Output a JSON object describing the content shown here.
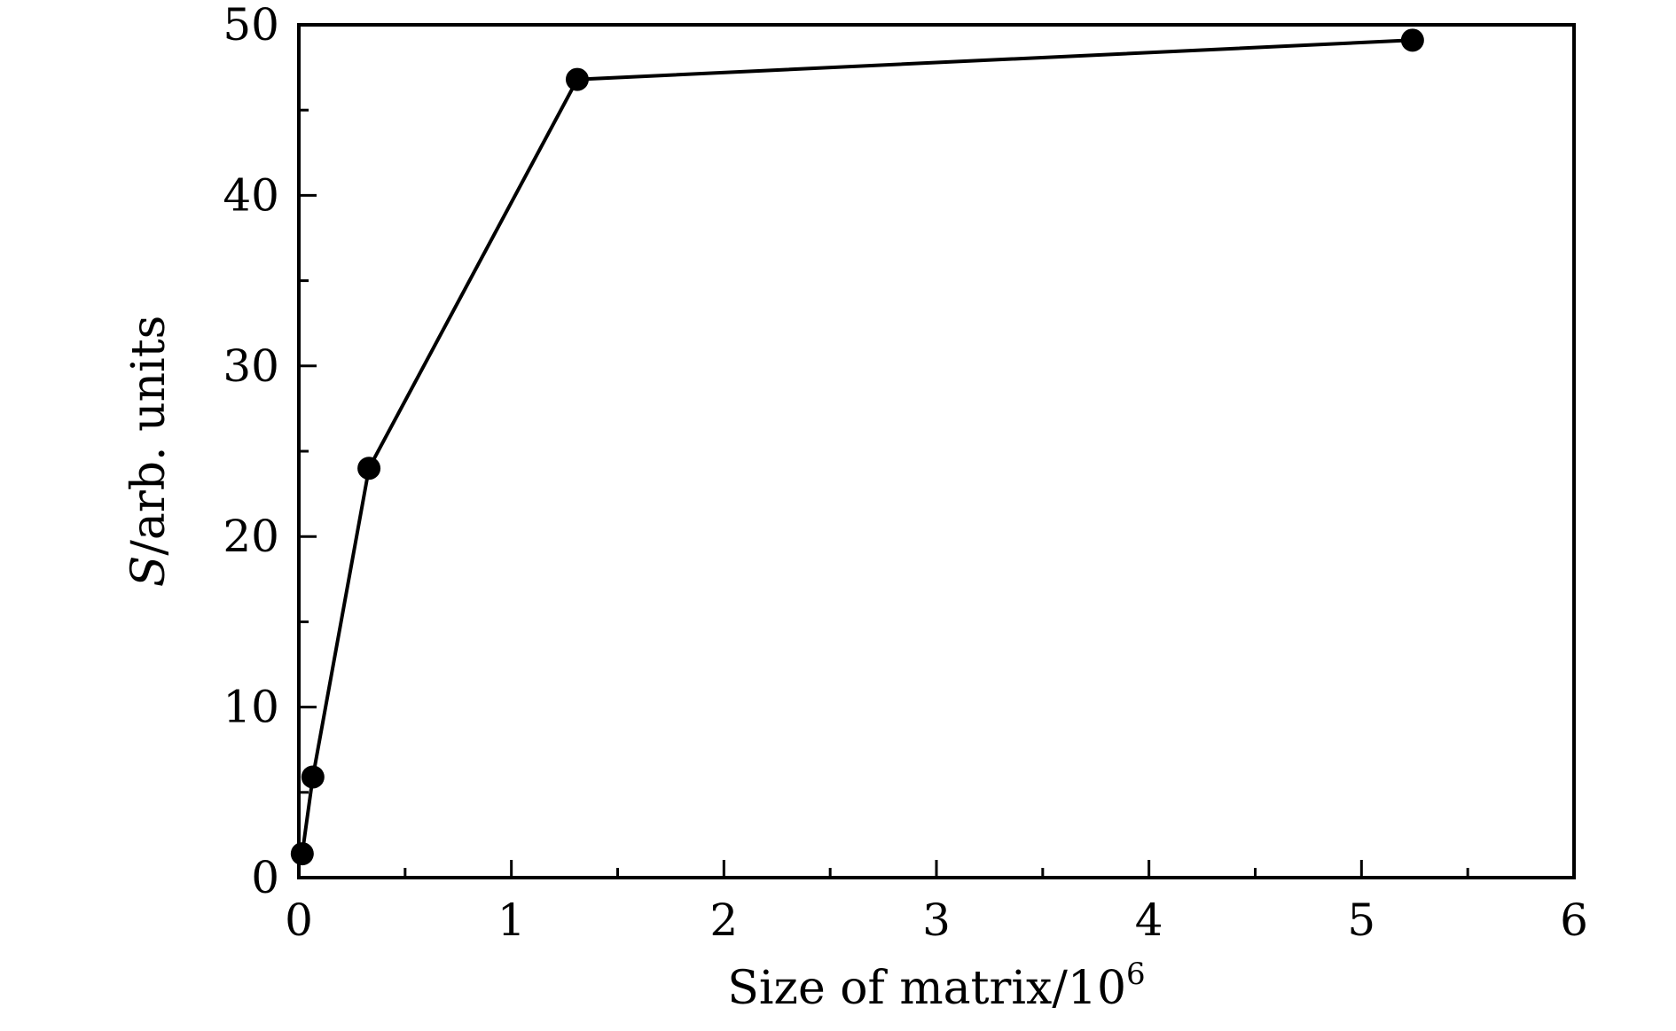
{
  "chart_data": {
    "type": "line",
    "title": "",
    "xlabel": {
      "text": "Size of matrix/10",
      "superscript": "6"
    },
    "ylabel": {
      "italic_part": "S",
      "rest": "/arb. units"
    },
    "xlim": [
      0,
      6
    ],
    "ylim": [
      0,
      50
    ],
    "x_ticks": [
      0,
      1,
      2,
      3,
      4,
      5,
      6
    ],
    "y_ticks": [
      0,
      10,
      20,
      30,
      40,
      50
    ],
    "x_ticks_minor": [
      0.5,
      1.5,
      2.5,
      3.5,
      4.5,
      5.5
    ],
    "y_ticks_minor": [
      5,
      15,
      25,
      35,
      45
    ],
    "grid": false,
    "legend": "none",
    "series": [
      {
        "x": [
          0.016,
          0.066,
          0.33,
          1.31,
          5.24
        ],
        "y": [
          1.4,
          5.9,
          24.0,
          46.8,
          49.1
        ],
        "color": "#000000",
        "marker": "filled-circle"
      }
    ]
  }
}
